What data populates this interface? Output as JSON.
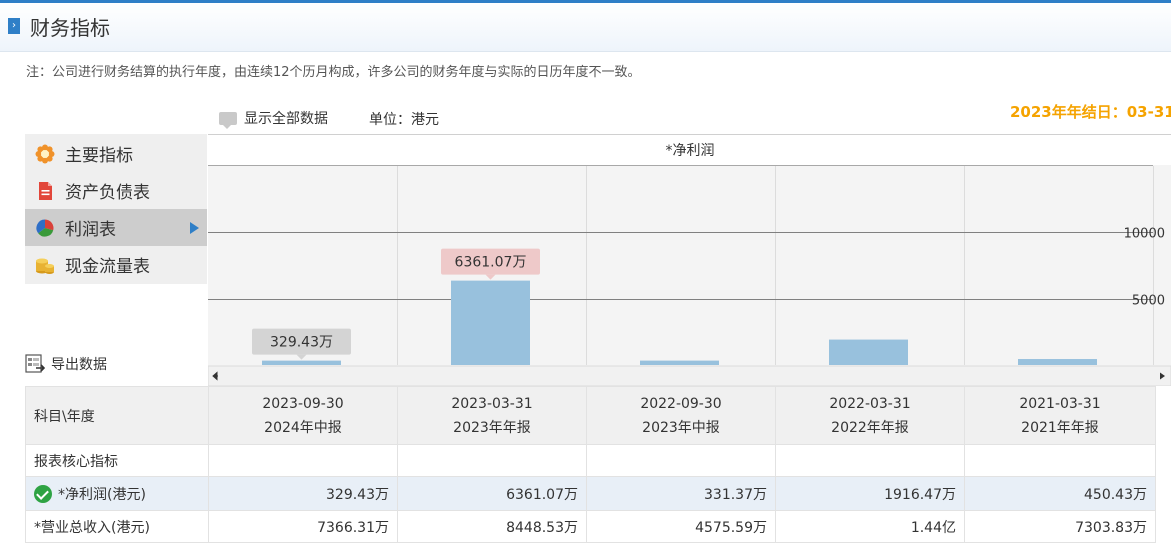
{
  "header": {
    "title": "财务指标"
  },
  "note": "注：公司进行财务结算的执行年度，由连续12个历月构成，许多公司的财务年度与实际的日历年度不一致。",
  "toolbar": {
    "show_all": "显示全部数据",
    "unit": "单位：港元"
  },
  "year_end": "2023年年结日：03-31",
  "sidebar": {
    "items": [
      {
        "label": "主要指标",
        "icon": "gear-flower-icon"
      },
      {
        "label": "资产负债表",
        "icon": "document-icon"
      },
      {
        "label": "利润表",
        "icon": "pie-chart-icon"
      },
      {
        "label": "现金流量表",
        "icon": "coins-icon"
      }
    ],
    "active_index": 2
  },
  "export_label": "导出数据",
  "colors": {
    "bar": "#98c1dd",
    "accent": "#2f7fc7",
    "year_end": "#f5a300",
    "highlight_row": "#e8eff7"
  },
  "chart_data": {
    "type": "bar",
    "title": "*净利润",
    "categories": [
      "2023-09-30",
      "2023-03-31",
      "2022-09-30",
      "2022-03-31",
      "2021-03-31"
    ],
    "values": [
      329.43,
      6361.07,
      331.37,
      1916.47,
      450.43
    ],
    "data_labels": [
      "329.43万",
      "6361.07万",
      "",
      "",
      ""
    ],
    "yticks": [
      "5000",
      "10000"
    ],
    "ytick_values": [
      5000,
      10000
    ],
    "ylim": [
      0,
      15000
    ]
  },
  "table": {
    "corner": "科目\\年度",
    "columns": [
      {
        "date": "2023-09-30",
        "period": "2024年中报"
      },
      {
        "date": "2023-03-31",
        "period": "2023年年报"
      },
      {
        "date": "2022-09-30",
        "period": "2023年中报"
      },
      {
        "date": "2022-03-31",
        "period": "2022年年报"
      },
      {
        "date": "2021-03-31",
        "period": "2021年年报"
      }
    ],
    "section_title": "报表核心指标",
    "rows": [
      {
        "label": "*净利润(港元)",
        "values": [
          "329.43万",
          "6361.07万",
          "331.37万",
          "1916.47万",
          "450.43万"
        ]
      },
      {
        "label": "*营业总收入(港元)",
        "values": [
          "7366.31万",
          "8448.53万",
          "4575.59万",
          "1.44亿",
          "7303.83万"
        ]
      }
    ]
  }
}
